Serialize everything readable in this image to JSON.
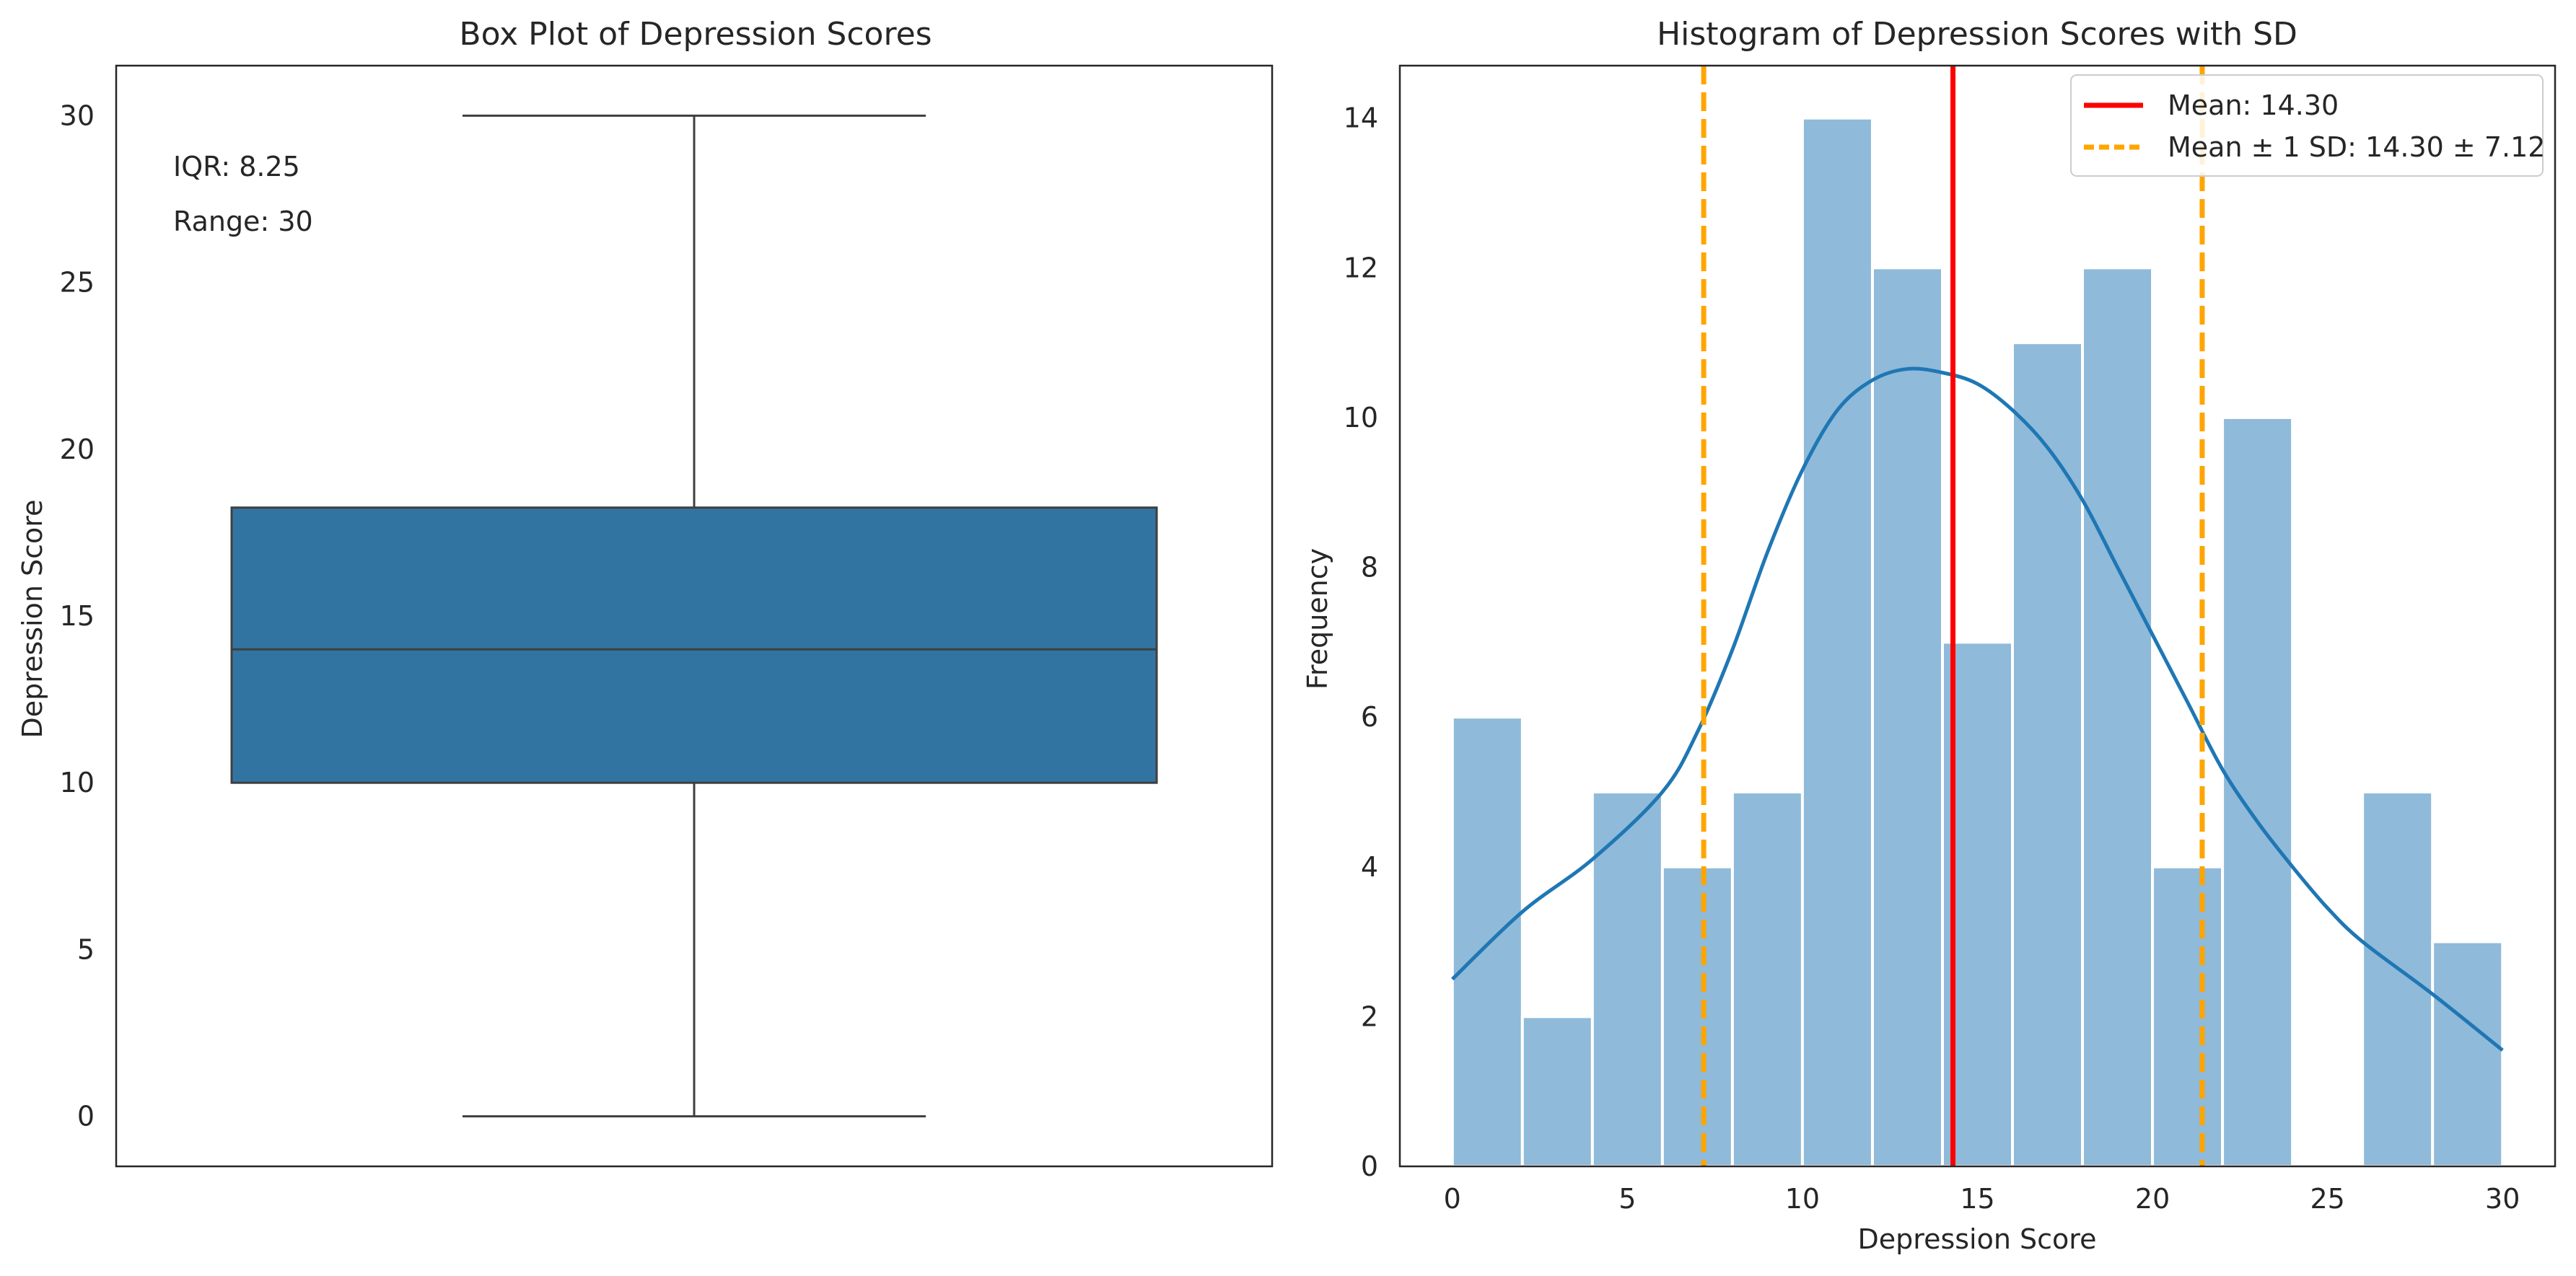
{
  "chart_data": [
    {
      "type": "box",
      "title": "Box Plot of Depression Scores",
      "xlabel": "",
      "ylabel": "Depression Score",
      "ylim": [
        -1.5,
        31.5
      ],
      "yticks": [
        0,
        5,
        10,
        15,
        20,
        25,
        30
      ],
      "box": {
        "min": 0,
        "q1": 10,
        "median": 14,
        "q3": 18.25,
        "max": 30,
        "color": "#3274a1"
      },
      "annotations": [
        "IQR: 8.25",
        "Range: 30"
      ],
      "grid": false
    },
    {
      "type": "bar",
      "subtype": "histogram",
      "title": "Histogram of Depression Scores with SD",
      "xlabel": "Depression Score",
      "ylabel": "Frequency",
      "xlim": [
        -1.5,
        31.5
      ],
      "ylim": [
        0,
        14.7
      ],
      "xticks": [
        0,
        5,
        10,
        15,
        20,
        25,
        30
      ],
      "yticks": [
        0,
        2,
        4,
        6,
        8,
        10,
        12,
        14
      ],
      "bin_edges": [
        0,
        2,
        4,
        6,
        8,
        10,
        12,
        14,
        16,
        18,
        20,
        22,
        24,
        26,
        28,
        30
      ],
      "counts": [
        6,
        2,
        5,
        4,
        5,
        14,
        12,
        7,
        11,
        12,
        4,
        10,
        0,
        5,
        3
      ],
      "bar_color": "#8fbad9",
      "kde": {
        "color": "#1f77b4",
        "x": [
          0,
          2,
          4,
          6,
          7,
          8,
          9,
          10,
          11,
          12,
          13,
          14,
          15,
          16,
          17,
          18,
          19,
          20,
          21,
          22,
          23,
          24,
          25,
          26,
          28,
          30
        ],
        "y": [
          2.5,
          3.4,
          4.1,
          5.0,
          5.8,
          6.9,
          8.2,
          9.3,
          10.1,
          10.5,
          10.65,
          10.6,
          10.45,
          10.1,
          9.6,
          8.9,
          8.0,
          7.1,
          6.2,
          5.3,
          4.6,
          4.0,
          3.45,
          3.0,
          2.3,
          1.55
        ]
      },
      "mean": 14.3,
      "sd": 7.12,
      "mean_line": {
        "value": 14.3,
        "color": "#ff0000",
        "label": "Mean: 14.30"
      },
      "sd_lines": {
        "values": [
          7.18,
          21.42
        ],
        "color": "#ffa500",
        "label": "Mean ± 1 SD: 14.30 ± 7.12"
      },
      "legend": "top-right",
      "grid": false
    }
  ]
}
